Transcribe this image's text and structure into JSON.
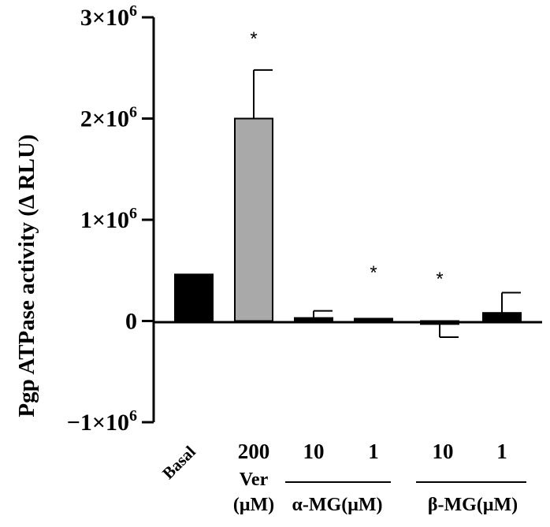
{
  "chart_data": {
    "type": "bar",
    "ylabel": "Pgp ATPase activity (Δ RLU)",
    "xlabel": "",
    "ylim": [
      -1000000,
      3000000
    ],
    "yticks": [
      {
        "value": 3000000,
        "label": "3×10",
        "exp": "6"
      },
      {
        "value": 2000000,
        "label": "2×10",
        "exp": "6"
      },
      {
        "value": 1000000,
        "label": "1×10",
        "exp": "6"
      },
      {
        "value": 0,
        "label": "0",
        "exp": ""
      },
      {
        "value": -1000000,
        "label": "−1×10",
        "exp": "6"
      }
    ],
    "categories": [
      "Basal",
      "200",
      "10",
      "1",
      "10",
      "1"
    ],
    "values": [
      460000,
      2000000,
      30000,
      10000,
      -30000,
      80000
    ],
    "errors": [
      0,
      480000,
      70000,
      10000,
      130000,
      200000
    ],
    "colors": [
      "#000000",
      "#a9a9a9",
      "#000000",
      "#000000",
      "#ffffff",
      "#000000"
    ],
    "significant": [
      "",
      "*",
      "",
      "*",
      "*",
      ""
    ],
    "groups": [
      {
        "label": "Ver",
        "unit": "(μM)"
      },
      {
        "label": "α-MG(μM)"
      },
      {
        "label": "β-MG(μM)"
      }
    ],
    "grid": false
  }
}
